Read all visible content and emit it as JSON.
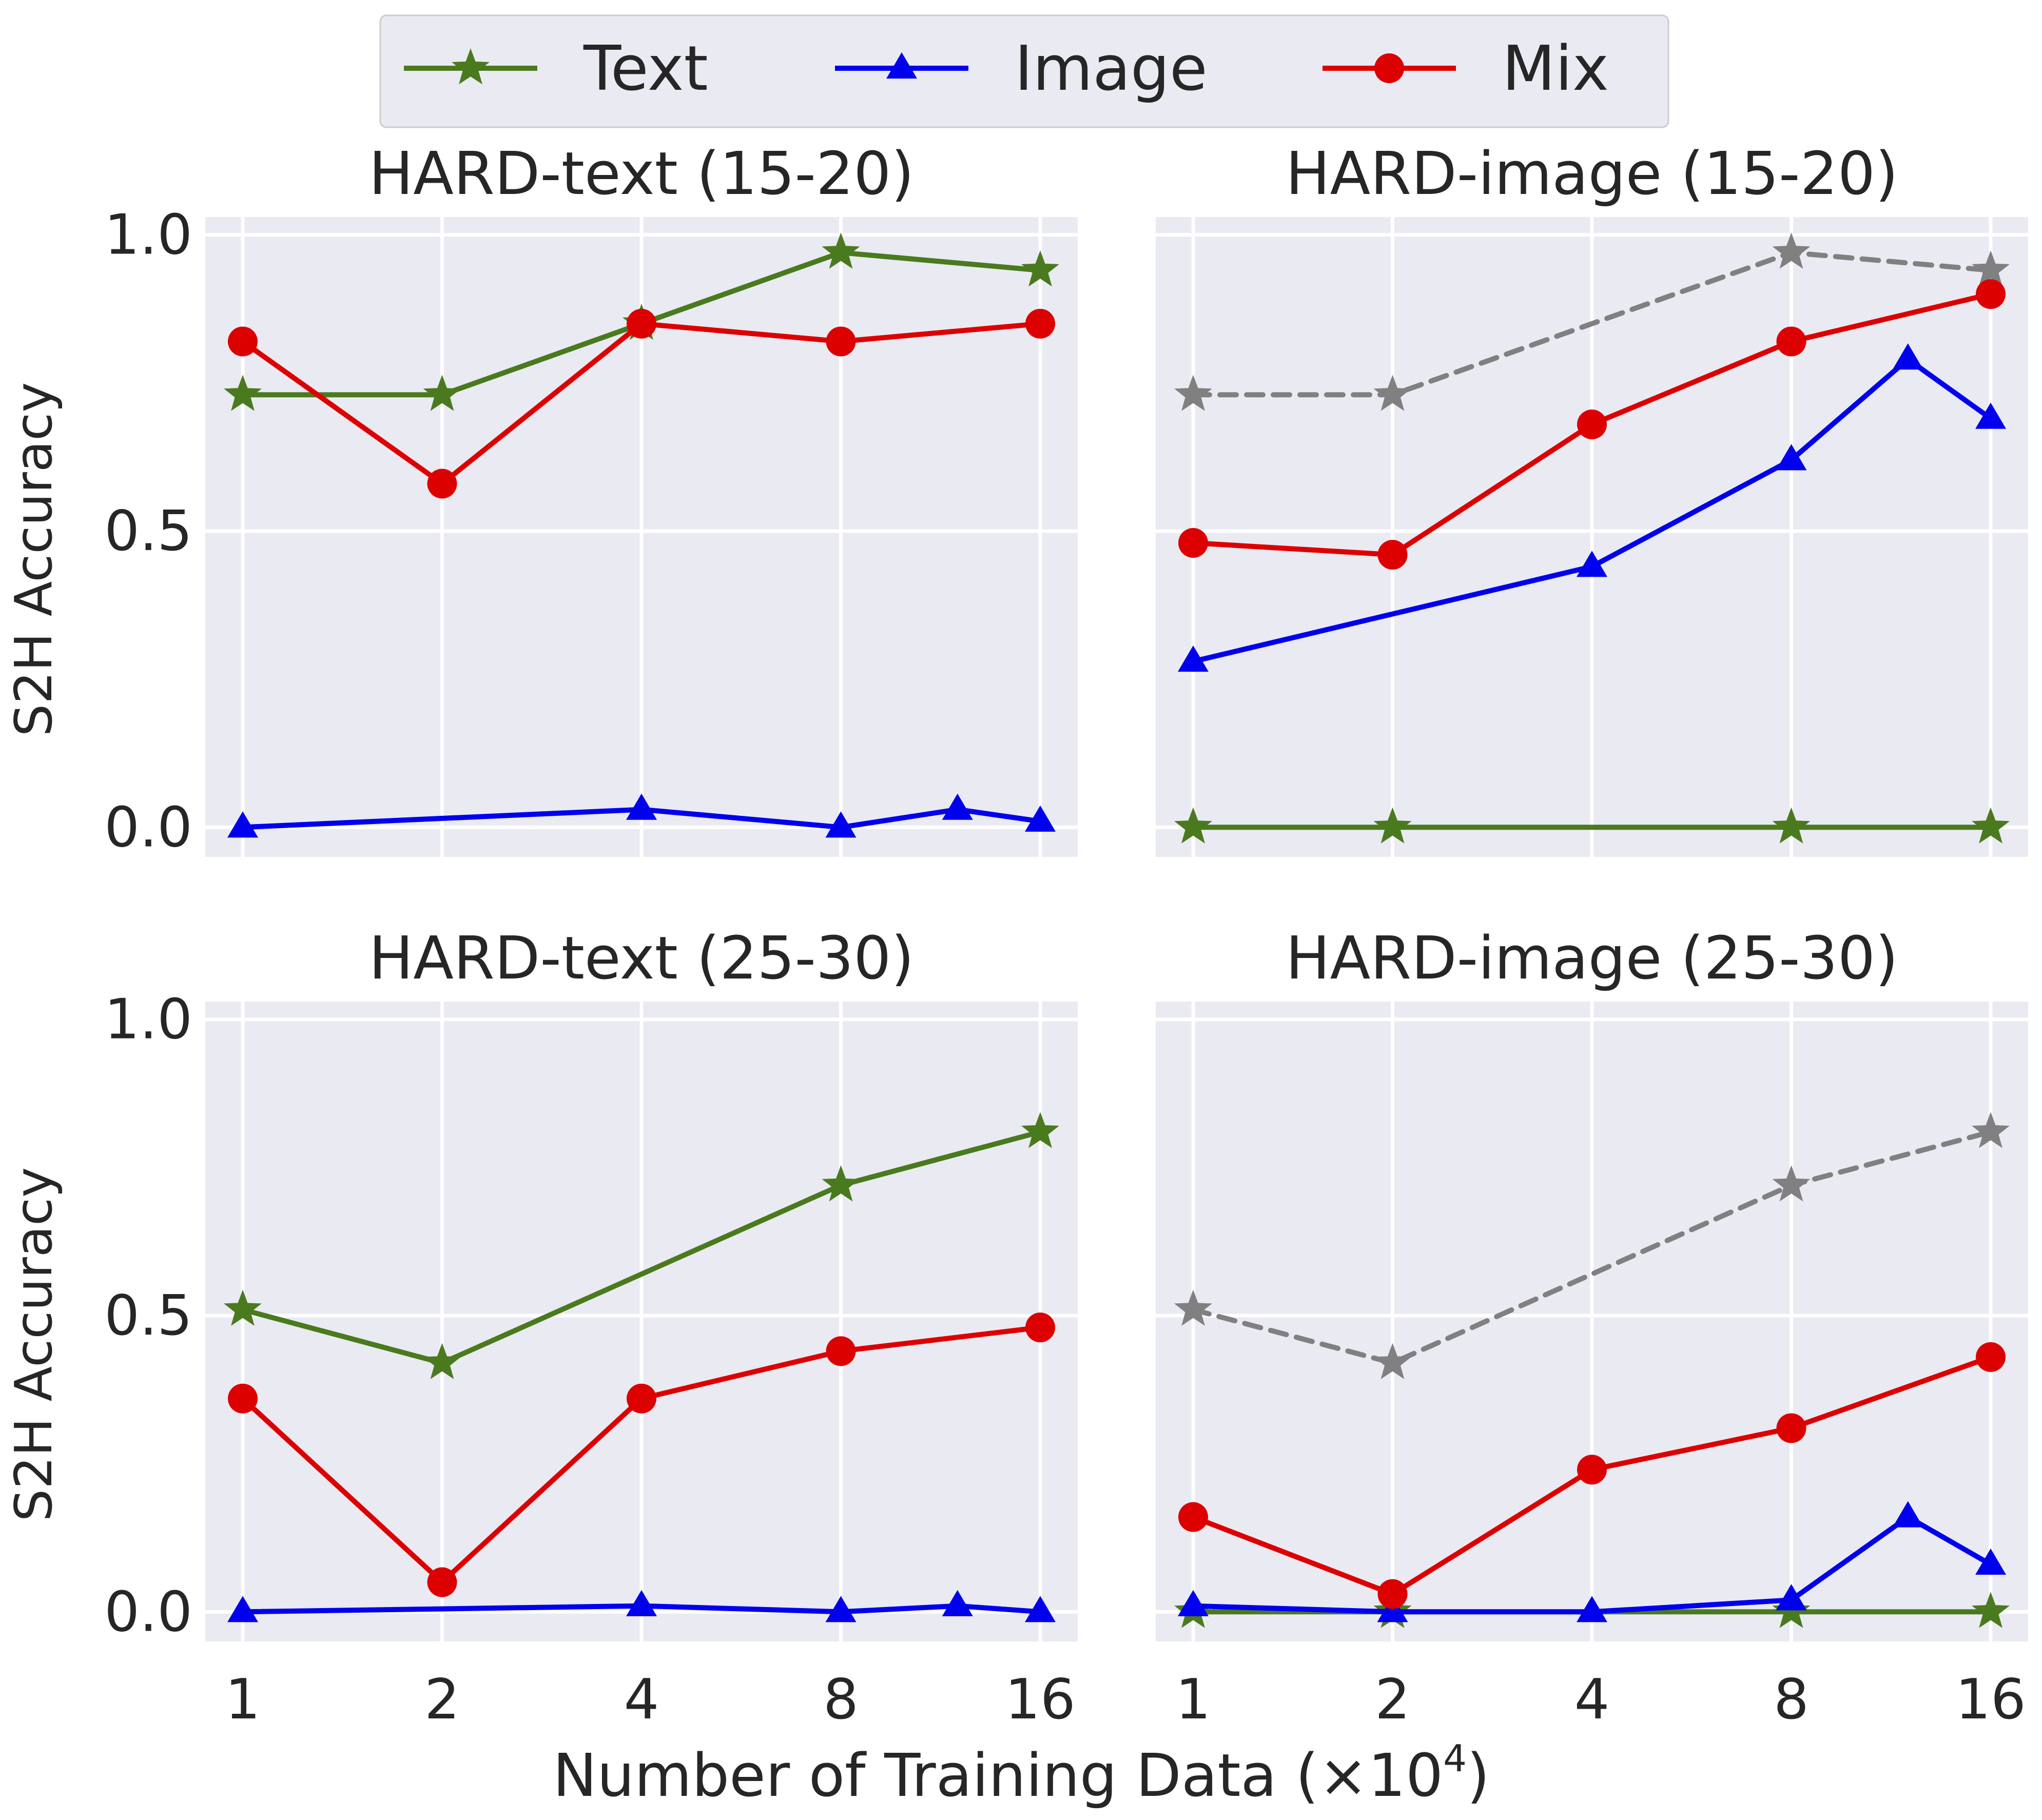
{
  "figure": {
    "xlabel_prefix": "Number of Training Data (×10",
    "xlabel_exp": "4",
    "xlabel_suffix": ")",
    "ylabel": "S2H Accuracy"
  },
  "legend": {
    "items": [
      {
        "label": "Text",
        "color": "#4a7a1e",
        "marker": "star"
      },
      {
        "label": "Image",
        "color": "#0000ee",
        "marker": "triangle"
      },
      {
        "label": "Mix",
        "color": "#dd0000",
        "marker": "circle"
      }
    ]
  },
  "colors": {
    "text": "#4a7a1e",
    "image": "#0000ee",
    "mix": "#dd0000",
    "reference": "#808080",
    "panel_bg": "#eaeaf2",
    "grid": "#ffffff"
  },
  "chart_data": [
    {
      "type": "line",
      "title": "HARD-text (15-20)",
      "xscale": "log2",
      "xticks": [
        1,
        2,
        4,
        8,
        16
      ],
      "ylim": [
        -0.05,
        1.03
      ],
      "yticks": [
        0.0,
        0.5,
        1.0
      ],
      "grid": true,
      "series": [
        {
          "name": "Text",
          "style": "solid",
          "marker": "star",
          "color": "#4a7a1e",
          "x": [
            1,
            2,
            4,
            8,
            16
          ],
          "y": [
            0.73,
            0.73,
            0.85,
            0.97,
            0.94
          ]
        },
        {
          "name": "Image",
          "style": "solid",
          "marker": "triangle",
          "color": "#0000ee",
          "x": [
            1,
            4,
            8,
            12,
            16
          ],
          "y": [
            0.0,
            0.03,
            0.0,
            0.03,
            0.01
          ]
        },
        {
          "name": "Mix",
          "style": "solid",
          "marker": "circle",
          "color": "#dd0000",
          "x": [
            1,
            2,
            4,
            8,
            16
          ],
          "y": [
            0.82,
            0.58,
            0.85,
            0.82,
            0.85
          ]
        }
      ]
    },
    {
      "type": "line",
      "title": "HARD-image (15-20)",
      "xscale": "log2",
      "xticks": [
        1,
        2,
        4,
        8,
        16
      ],
      "ylim": [
        -0.05,
        1.03
      ],
      "yticks": [
        0.0,
        0.5,
        1.0
      ],
      "grid": true,
      "series": [
        {
          "style": "dashed",
          "marker": "star",
          "color": "#808080",
          "x": [
            1,
            2,
            8,
            16
          ],
          "y": [
            0.73,
            0.73,
            0.97,
            0.94
          ]
        },
        {
          "name": "Text",
          "style": "solid",
          "marker": "star",
          "color": "#4a7a1e",
          "x": [
            1,
            2,
            8,
            16
          ],
          "y": [
            0.0,
            0.0,
            0.0,
            0.0
          ]
        },
        {
          "name": "Image",
          "style": "solid",
          "marker": "triangle",
          "color": "#0000ee",
          "x": [
            1,
            4,
            8,
            12,
            16
          ],
          "y": [
            0.28,
            0.44,
            0.62,
            0.79,
            0.69
          ]
        },
        {
          "name": "Mix",
          "style": "solid",
          "marker": "circle",
          "color": "#dd0000",
          "x": [
            1,
            2,
            4,
            8,
            16
          ],
          "y": [
            0.48,
            0.46,
            0.68,
            0.82,
            0.9
          ]
        }
      ]
    },
    {
      "type": "line",
      "title": "HARD-text (25-30)",
      "xscale": "log2",
      "xticks": [
        1,
        2,
        4,
        8,
        16
      ],
      "ylim": [
        -0.05,
        1.03
      ],
      "yticks": [
        0.0,
        0.5,
        1.0
      ],
      "grid": true,
      "series": [
        {
          "name": "Text",
          "style": "solid",
          "marker": "star",
          "color": "#4a7a1e",
          "x": [
            1,
            2,
            8,
            16
          ],
          "y": [
            0.51,
            0.42,
            0.72,
            0.81
          ]
        },
        {
          "name": "Image",
          "style": "solid",
          "marker": "triangle",
          "color": "#0000ee",
          "x": [
            1,
            4,
            8,
            12,
            16
          ],
          "y": [
            0.0,
            0.01,
            0.0,
            0.01,
            0.0
          ]
        },
        {
          "name": "Mix",
          "style": "solid",
          "marker": "circle",
          "color": "#dd0000",
          "x": [
            1,
            2,
            4,
            8,
            16
          ],
          "y": [
            0.36,
            0.05,
            0.36,
            0.44,
            0.48
          ]
        }
      ]
    },
    {
      "type": "line",
      "title": "HARD-image (25-30)",
      "xscale": "log2",
      "xticks": [
        1,
        2,
        4,
        8,
        16
      ],
      "ylim": [
        -0.05,
        1.03
      ],
      "yticks": [
        0.0,
        0.5,
        1.0
      ],
      "grid": true,
      "series": [
        {
          "style": "dashed",
          "marker": "star",
          "color": "#808080",
          "x": [
            1,
            2,
            8,
            16
          ],
          "y": [
            0.51,
            0.42,
            0.72,
            0.81
          ]
        },
        {
          "name": "Text",
          "style": "solid",
          "marker": "star",
          "color": "#4a7a1e",
          "x": [
            1,
            2,
            8,
            16
          ],
          "y": [
            0.0,
            0.0,
            0.0,
            0.0
          ]
        },
        {
          "name": "Image",
          "style": "solid",
          "marker": "triangle",
          "color": "#0000ee",
          "x": [
            1,
            2,
            4,
            8,
            12,
            16
          ],
          "y": [
            0.01,
            0.0,
            0.0,
            0.02,
            0.16,
            0.08
          ]
        },
        {
          "name": "Mix",
          "style": "solid",
          "marker": "circle",
          "color": "#dd0000",
          "x": [
            1,
            2,
            4,
            8,
            16
          ],
          "y": [
            0.16,
            0.03,
            0.24,
            0.31,
            0.43
          ]
        }
      ]
    }
  ]
}
